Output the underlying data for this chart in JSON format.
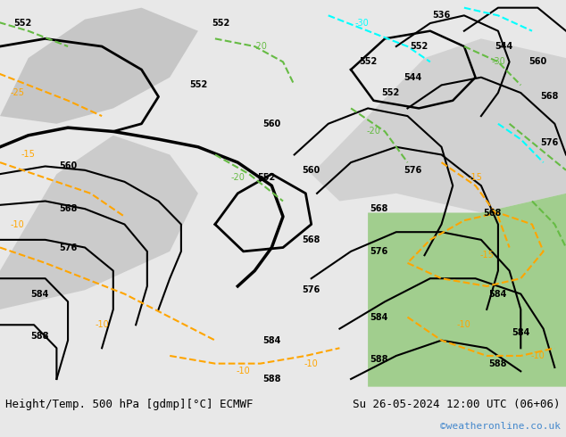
{
  "title_left": "Height/Temp. 500 hPa [gdmp][°C] ECMWF",
  "title_right": "Su 26-05-2024 12:00 UTC (06+06)",
  "watermark": "©weatheronline.co.uk",
  "bg_color": "#d0d0d0",
  "map_bg_color": "#b8d4a0",
  "fig_width": 6.34,
  "fig_height": 4.9,
  "dpi": 100,
  "bottom_bar_color": "#e8e8e8",
  "title_fontsize": 9,
  "watermark_color": "#4488cc",
  "watermark_fontsize": 8
}
